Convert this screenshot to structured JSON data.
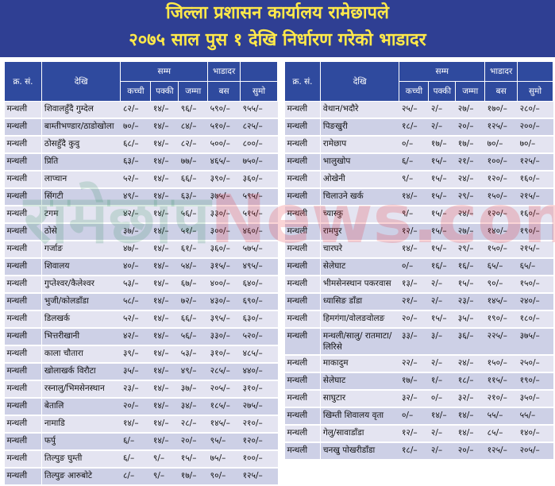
{
  "title": {
    "line1": "जिल्ला प्रशासन कार्यालय रामेछापले",
    "line2": "२०७५ साल पुस १ देखि निर्धारण गरेको भाडादर"
  },
  "watermark": {
    "part1": "रामेछाप",
    "part2": "News.com"
  },
  "colors": {
    "banner": "#2f3f93",
    "title_text": "#ffe94a",
    "header": "#2f4a9e",
    "row_light": "#e4e4f1",
    "row_dark": "#cdd0e6"
  },
  "headers": {
    "serial": "क्र. सं.",
    "from": "देखि",
    "to": "सम्म",
    "fare": "भाडादर",
    "kachchi": "कच्ची",
    "pakki": "पक्की",
    "jamma": "जम्मा",
    "bus": "बस",
    "sumo": "सुमो"
  },
  "left_rows": [
    [
      "मन्थली",
      "शिवालहुँदै गुम्देल",
      "८२/–",
      "१४/–",
      "९६/–",
      "५९०/–",
      "९५५/–"
    ],
    [
      "मन्थली",
      "बाम्तीभण्डार/ठाडोखोला",
      "७०/–",
      "१४/–",
      "८४/–",
      "५१०/–",
      "८२५/–"
    ],
    [
      "मन्थली",
      "ठोसहुँदै कुवु",
      "६८/–",
      "१४/–",
      "८२/–",
      "५००/–",
      "८००/–"
    ],
    [
      "मन्थली",
      "प्रिति",
      "६३/–",
      "१४/–",
      "७७/–",
      "४६५/–",
      "७५०/–"
    ],
    [
      "मन्थली",
      "लाप्चान",
      "५२/–",
      "१४/–",
      "६६/–",
      "३९०/–",
      "३६०/–"
    ],
    [
      "मन्थली",
      "सिंगटी",
      "४९/–",
      "१४/–",
      "६३/–",
      "३७५/–",
      "५९५/–"
    ],
    [
      "मन्थली",
      "टगम",
      "४२/–",
      "१४/–",
      "५६/–",
      "३३०/–",
      "५१५/–"
    ],
    [
      "मन्थली",
      "ठोसे",
      "३७/–",
      "१४/–",
      "५१/–",
      "३००/–",
      "४६०/–"
    ],
    [
      "मन्थली",
      "गर्जाङ",
      "४७/–",
      "१४/–",
      "६१/–",
      "३६०/–",
      "५७५/–"
    ],
    [
      "मन्थली",
      "शिवालय",
      "४०/–",
      "१४/–",
      "५४/–",
      "३१५/–",
      "४९५/–"
    ],
    [
      "मन्थली",
      "गुप्तेश्वर/कैलेश्वर",
      "५३/–",
      "१४/–",
      "६७/–",
      "४००/–",
      "६४०/–"
    ],
    [
      "मन्थली",
      "भुजी/कोलडाँडा",
      "५८/–",
      "१४/–",
      "७२/–",
      "४३०/–",
      "६९०/–"
    ],
    [
      "मन्थली",
      "डिलखर्क",
      "५२/–",
      "१४/–",
      "६६/–",
      "३९५/–",
      "६३०/–"
    ],
    [
      "मन्थली",
      "भित्तरीखानी",
      "४२/–",
      "१४/–",
      "५६/–",
      "३३०/–",
      "५२०/–"
    ],
    [
      "मन्थली",
      "काला चौतारा",
      "३९/–",
      "१४/–",
      "५३/–",
      "३१०/–",
      "४८५/–"
    ],
    [
      "मन्थली",
      "खोलाखर्क विरौटा",
      "३५/–",
      "१४/–",
      "४९/–",
      "२८५/–",
      "४४०/–"
    ],
    [
      "मन्थली",
      "रस्नालु/भिमसेनस्थान",
      "२३/–",
      "१४/–",
      "३७/–",
      "२०५/–",
      "३१०/–"
    ],
    [
      "मन्थली",
      "बेतालि",
      "२०/–",
      "१४/–",
      "३४/–",
      "१८५/–",
      "२७५/–"
    ],
    [
      "मन्थली",
      "नामाडि",
      "१४/–",
      "१४/–",
      "२८/–",
      "१४५/–",
      "२१०/–"
    ],
    [
      "मन्थली",
      "फर्पु",
      "६/–",
      "१४/–",
      "२०/–",
      "९५/–",
      "१२०/–"
    ],
    [
      "मन्थली",
      "तिल्पुङ घुम्ती",
      "६/–",
      "९/–",
      "१५/–",
      "७५/–",
      "१००/–"
    ],
    [
      "मन्थली",
      "तिल्पुङ आरुबोटे",
      "८/–",
      "९/–",
      "१७/–",
      "९०/–",
      "१२५/–"
    ]
  ],
  "right_rows": [
    [
      "मन्थली",
      "वेथान/भदौरे",
      "२५/–",
      "२/–",
      "२७/–",
      "१७०/–",
      "२८०/–"
    ],
    [
      "मन्थली",
      "पिङखुरी",
      "१८/–",
      "२/–",
      "२०/–",
      "१२५/–",
      "२००/–"
    ],
    [
      "मन्थली",
      "रामेछाप",
      "०/–",
      "१७/–",
      "१७/–",
      "७०/–",
      "७०/–"
    ],
    [
      "मन्थली",
      "भालुखोप",
      "६/–",
      "१५/–",
      "२१/–",
      "१००/–",
      "१२५/–"
    ],
    [
      "मन्थली",
      "ओखेनी",
      "९/–",
      "१५/–",
      "२४/–",
      "१२०/–",
      "१६०/–"
    ],
    [
      "मन्थली",
      "चिलाउने खर्क",
      "१४/–",
      "१५/–",
      "२९/–",
      "१५०/–",
      "२१५/–"
    ],
    [
      "मन्थली",
      "च्यास्कु",
      "९/–",
      "१५/–",
      "२४/–",
      "१२०/–",
      "१६०/–"
    ],
    [
      "मन्थली",
      "रामपुर",
      "१२/–",
      "१५/–",
      "२७/–",
      "१४०/–",
      "१९०/–"
    ],
    [
      "मन्थली",
      "चारघरे",
      "१४/–",
      "१५/–",
      "२९/–",
      "१५०/–",
      "२१५/–"
    ],
    [
      "मन्थली",
      "सेलेघाट",
      "०/–",
      "१६/–",
      "१६/–",
      "६५/–",
      "६५/–"
    ],
    [
      "मन्थली",
      "भीमसेनस्थान पकरवास",
      "१३/–",
      "२/–",
      "१५/–",
      "९०/–",
      "१५०/–"
    ],
    [
      "मन्थली",
      "ध्यासिङ डाँडा",
      "२१/–",
      "२/–",
      "२३/–",
      "१४५/–",
      "२४०/–"
    ],
    [
      "मन्थली",
      "हिमगंगा/वोलङवोलङ",
      "२०/–",
      "१५/–",
      "३५/–",
      "१९०/–",
      "१८०/–"
    ],
    [
      "मन्थली",
      "मन्थली/सालु/ रातमाटा/लिरिसे",
      "३३/–",
      "३/–",
      "३६/–",
      "२२५/–",
      "३७५/–"
    ],
    [
      "मन्थली",
      "माकादुम",
      "२२/–",
      "२/–",
      "२४/–",
      "१५०/–",
      "२५०/–"
    ],
    [
      "मन्थली",
      "सेलेघाट",
      "१७/–",
      "१/–",
      "१८/–",
      "११५/–",
      "१९०/–"
    ],
    [
      "मन्थली",
      "साघुटार",
      "३२/–",
      "०/–",
      "३२/–",
      "२१०/–",
      "३५०/–"
    ],
    [
      "मन्थली",
      "खिम्ती शिवालय वृता",
      "०/–",
      "१४/–",
      "१४/–",
      "५५/–",
      "५५/–"
    ],
    [
      "मन्थली",
      "गेलु/सावाडाँडा",
      "१२/–",
      "२/–",
      "१४/–",
      "८५/–",
      "१४०/–"
    ],
    [
      "मन्थली",
      "चनखु पोखरीडाँडा",
      "१८/–",
      "२/–",
      "२०/–",
      "१२५/–",
      "२०५/–"
    ]
  ]
}
